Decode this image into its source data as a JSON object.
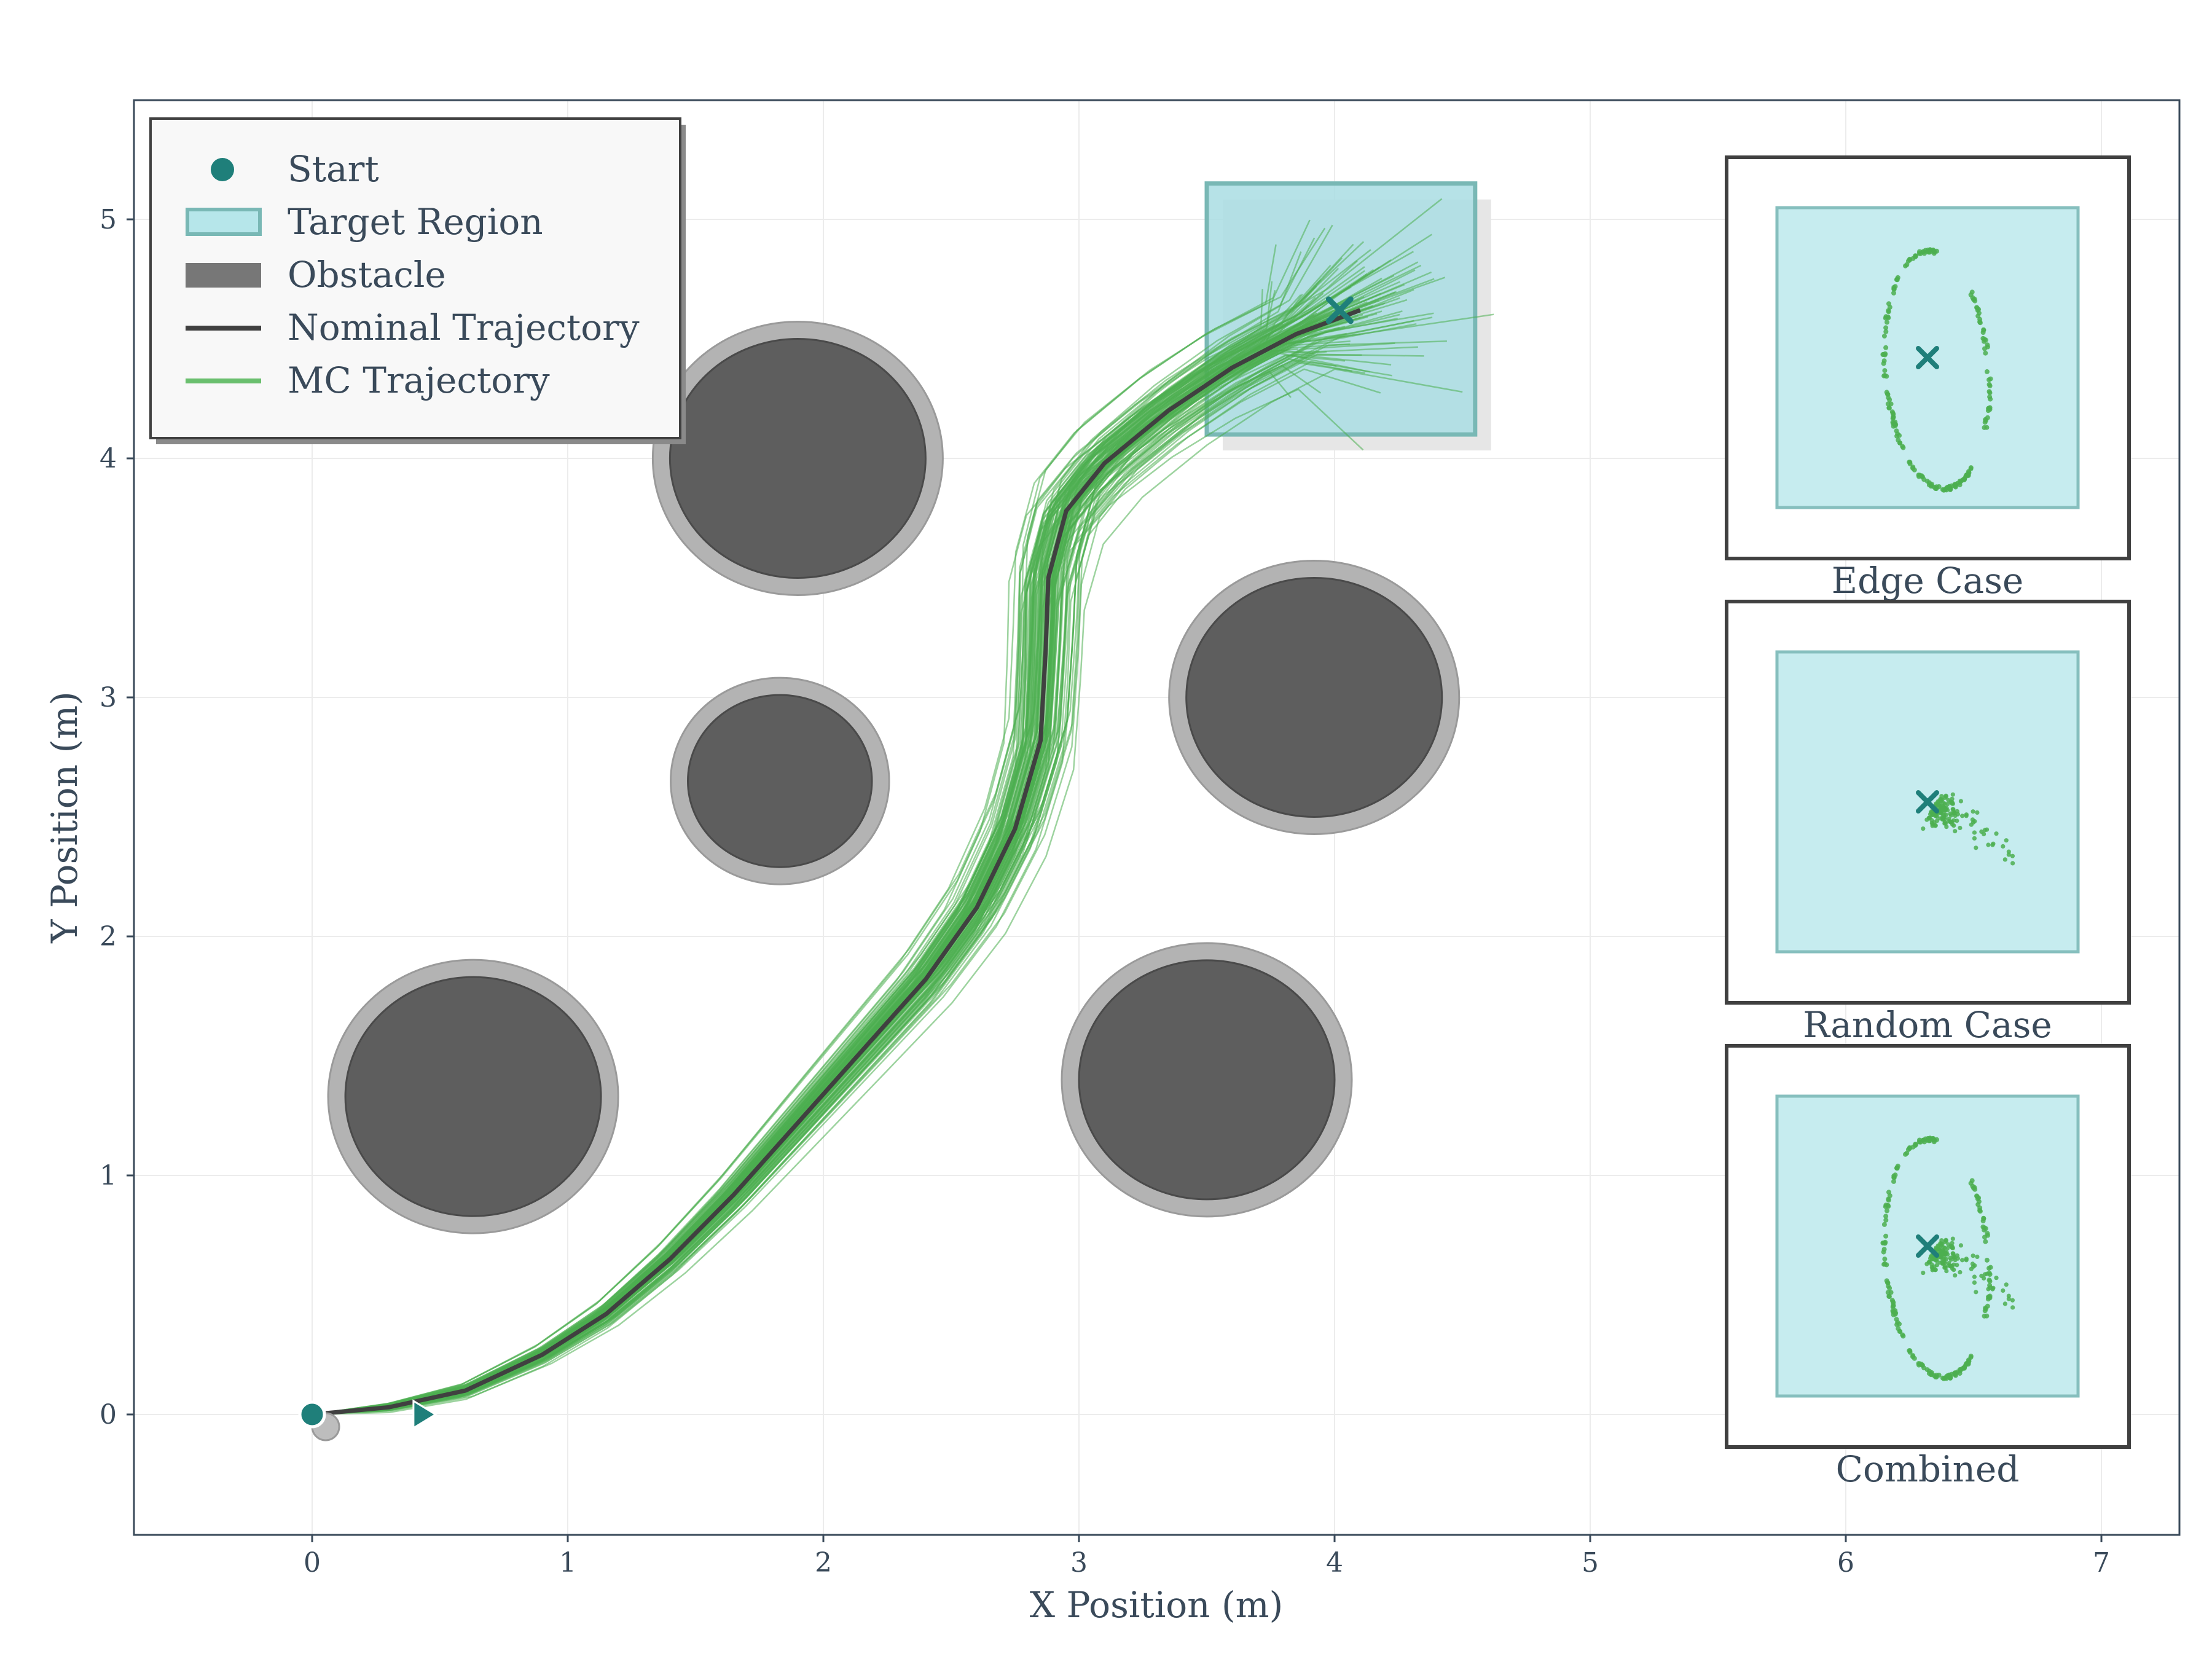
{
  "chart_data": {
    "type": "scatter",
    "xlabel": "X Position (m)",
    "ylabel": "Y Position (m)",
    "xlim": [
      -0.7,
      7.3
    ],
    "ylim": [
      -0.5,
      5.5
    ],
    "xticks": [
      0,
      1,
      2,
      3,
      4,
      5,
      6,
      7
    ],
    "yticks": [
      0,
      1,
      2,
      3,
      4,
      5
    ],
    "grid": true,
    "legend_position": "top-left",
    "legend": [
      {
        "key": "start",
        "label": "Start"
      },
      {
        "key": "target",
        "label": "Target Region"
      },
      {
        "key": "obstacle",
        "label": "Obstacle"
      },
      {
        "key": "nominal",
        "label": "Nominal Trajectory"
      },
      {
        "key": "mc",
        "label": "MC Trajectory"
      }
    ],
    "start": {
      "x": 0,
      "y": 0
    },
    "goal": {
      "x": 4.02,
      "y": 4.62
    },
    "target_region": {
      "x": [
        3.5,
        4.55
      ],
      "y": [
        4.1,
        5.15
      ]
    },
    "obstacles": [
      {
        "x": 1.9,
        "y": 4.0,
        "r": 0.5
      },
      {
        "x": 1.83,
        "y": 2.65,
        "r": 0.36
      },
      {
        "x": 3.92,
        "y": 3.0,
        "r": 0.5
      },
      {
        "x": 0.63,
        "y": 1.33,
        "r": 0.5
      },
      {
        "x": 3.5,
        "y": 1.4,
        "r": 0.5
      }
    ],
    "nominal_trajectory": {
      "x": [
        0.0,
        0.3,
        0.6,
        0.9,
        1.15,
        1.4,
        1.65,
        1.9,
        2.15,
        2.4,
        2.6,
        2.75,
        2.85,
        2.87,
        2.88,
        2.95,
        3.1,
        3.35,
        3.6,
        3.85,
        4.1
      ],
      "y": [
        0.0,
        0.03,
        0.1,
        0.25,
        0.42,
        0.65,
        0.92,
        1.22,
        1.52,
        1.82,
        2.12,
        2.45,
        2.82,
        3.2,
        3.5,
        3.78,
        3.98,
        4.2,
        4.38,
        4.52,
        4.62
      ]
    },
    "mc_spread": {
      "count": 120,
      "sigma": 0.08
    },
    "insets": [
      {
        "title": "Edge Case",
        "samples": "edge"
      },
      {
        "title": "Random Case",
        "samples": "random"
      },
      {
        "title": "Combined",
        "samples": "combined"
      }
    ]
  },
  "colors": {
    "teal": "#1f7f7a",
    "target_fill": "#a9dde3",
    "target_edge": "#79b8b5",
    "obstacle": "#5e5e5e",
    "obstacle_halo": "#b3b3b3",
    "nominal": "#404040",
    "mc": "#4caf50",
    "axis": "#3a4a5a",
    "grid": "#ececec"
  }
}
